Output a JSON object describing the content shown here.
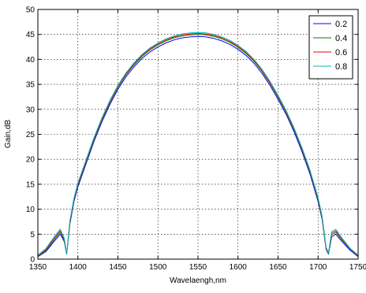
{
  "chart_data": {
    "type": "line",
    "title": "",
    "xlabel": "Wavelaengh,nm",
    "ylabel": "Gain,dB",
    "xlim": [
      1350,
      1750
    ],
    "ylim": [
      0,
      50
    ],
    "xticks": [
      1350,
      1400,
      1450,
      1500,
      1550,
      1600,
      1650,
      1700,
      1750
    ],
    "yticks": [
      0,
      5,
      10,
      15,
      20,
      25,
      30,
      35,
      40,
      45,
      50
    ],
    "grid": true,
    "grid_style": "dotted",
    "legend_position": "top-right",
    "x": [
      1350,
      1360,
      1370,
      1378,
      1383,
      1386,
      1390,
      1395,
      1400,
      1410,
      1420,
      1430,
      1440,
      1450,
      1460,
      1470,
      1480,
      1490,
      1500,
      1510,
      1520,
      1530,
      1540,
      1550,
      1560,
      1570,
      1580,
      1590,
      1600,
      1610,
      1620,
      1630,
      1640,
      1650,
      1660,
      1670,
      1680,
      1690,
      1700,
      1705,
      1710,
      1713,
      1717,
      1722,
      1730,
      1740,
      1750
    ],
    "series": [
      {
        "name": "0.2",
        "color": "#0000ff",
        "values": [
          0.5,
          1.5,
          3.5,
          5.0,
          3.5,
          1.0,
          7.0,
          11.5,
          14.5,
          19.0,
          23.5,
          27.5,
          31.0,
          34.0,
          36.5,
          38.5,
          40.2,
          41.5,
          42.5,
          43.3,
          43.9,
          44.3,
          44.5,
          44.6,
          44.5,
          44.2,
          43.7,
          43.0,
          42.0,
          40.8,
          39.2,
          37.2,
          34.8,
          32.0,
          29.0,
          25.5,
          21.5,
          17.0,
          11.5,
          8.0,
          2.0,
          1.0,
          4.5,
          5.0,
          3.5,
          1.8,
          0.5
        ]
      },
      {
        "name": "0.4",
        "color": "#008000",
        "values": [
          0.6,
          1.7,
          3.8,
          5.4,
          3.8,
          1.0,
          7.3,
          11.8,
          14.9,
          19.4,
          23.9,
          27.9,
          31.4,
          34.4,
          36.9,
          38.9,
          40.6,
          41.9,
          42.9,
          43.7,
          44.3,
          44.7,
          44.9,
          45.0,
          44.9,
          44.6,
          44.1,
          43.4,
          42.4,
          41.2,
          39.6,
          37.6,
          35.2,
          32.4,
          29.4,
          25.9,
          21.9,
          17.4,
          11.9,
          8.3,
          2.2,
          1.1,
          4.9,
          5.4,
          3.8,
          2.0,
          0.6
        ]
      },
      {
        "name": "0.6",
        "color": "#ff0000",
        "values": [
          0.7,
          1.9,
          4.1,
          5.7,
          4.0,
          1.0,
          7.5,
          12.0,
          15.1,
          19.6,
          24.1,
          28.1,
          31.6,
          34.6,
          37.1,
          39.1,
          40.8,
          42.1,
          43.1,
          43.9,
          44.5,
          44.9,
          45.1,
          45.2,
          45.1,
          44.8,
          44.3,
          43.6,
          42.6,
          41.4,
          39.8,
          37.8,
          35.4,
          32.6,
          29.6,
          26.1,
          22.1,
          17.6,
          12.1,
          8.5,
          2.3,
          1.2,
          5.2,
          5.7,
          4.0,
          2.1,
          0.7
        ]
      },
      {
        "name": "0.8",
        "color": "#00bfbf",
        "values": [
          0.8,
          2.1,
          4.4,
          6.0,
          4.2,
          1.0,
          7.7,
          12.2,
          15.3,
          19.8,
          24.3,
          28.3,
          31.8,
          34.8,
          37.3,
          39.3,
          41.0,
          42.3,
          43.3,
          44.1,
          44.7,
          45.1,
          45.3,
          45.4,
          45.3,
          45.0,
          44.5,
          43.8,
          42.8,
          41.6,
          40.0,
          38.0,
          35.6,
          32.8,
          29.8,
          26.3,
          22.3,
          17.8,
          12.3,
          8.7,
          2.4,
          1.3,
          5.5,
          6.0,
          4.2,
          2.2,
          0.8
        ]
      }
    ]
  }
}
